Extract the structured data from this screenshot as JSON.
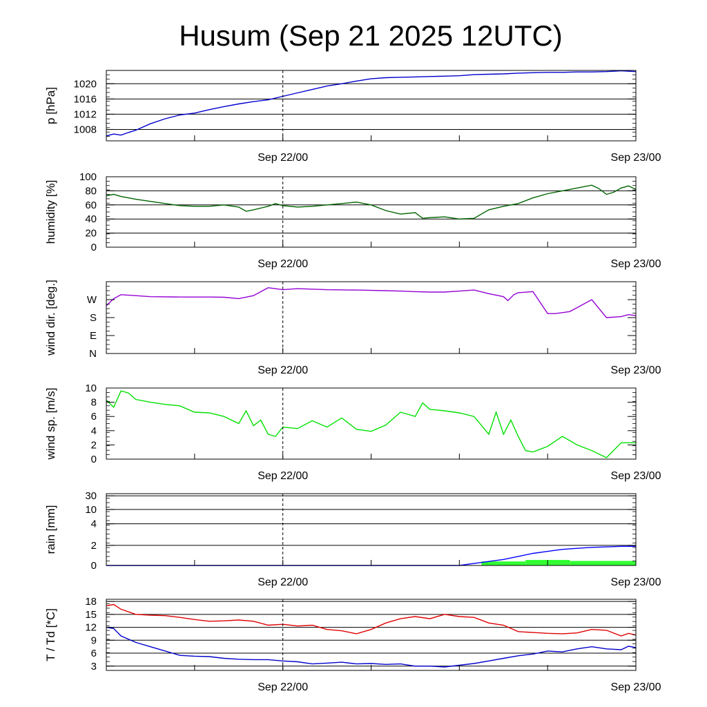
{
  "title": "Husum (Sep 21 2025 12UTC)",
  "x_labels": [
    "Sep 22/00",
    "Sep 23/00"
  ],
  "colors": {
    "pressure": "#0000cc",
    "humidity": "#006400",
    "wind_dir": "#9400d3",
    "wind_speed": "#00e000",
    "rain_total": "#0000ff",
    "rain_bars": "#33ff33",
    "temperature": "#e00000",
    "dewpoint": "#0000cc",
    "grid": "#000000"
  },
  "chart_data": [
    {
      "type": "line",
      "name": "pressure",
      "ylabel": "p [hPa]",
      "ylim": [
        1005,
        1023.5
      ],
      "yticks": [
        1008,
        1012,
        1016,
        1020
      ],
      "ytick_labels": [
        "1008",
        "1012",
        "1016",
        "1020"
      ],
      "grid": true,
      "x": [
        0,
        0.5,
        1,
        1.5,
        2,
        3,
        4,
        5,
        6,
        7,
        8,
        9,
        10,
        11,
        12,
        13,
        14,
        15,
        16,
        17,
        18,
        19,
        20,
        21,
        22,
        23,
        24,
        25,
        26,
        27,
        28,
        29,
        30,
        31,
        32,
        33,
        34,
        35,
        36
      ],
      "series": [
        {
          "values": [
            1006.3,
            1006.8,
            1006.5,
            1007.2,
            1007.8,
            1009.5,
            1010.8,
            1011.8,
            1012.3,
            1013.2,
            1014.0,
            1014.7,
            1015.3,
            1015.8,
            1016.7,
            1017.6,
            1018.5,
            1019.4,
            1020.0,
            1020.7,
            1021.3,
            1021.6,
            1021.7,
            1021.8,
            1021.9,
            1022.0,
            1022.1,
            1022.4,
            1022.5,
            1022.6,
            1022.8,
            1022.9,
            1023.0,
            1023.0,
            1023.1,
            1023.1,
            1023.2,
            1023.4,
            1023.2
          ]
        }
      ]
    },
    {
      "type": "line",
      "name": "humidity",
      "ylabel": "humidity [%]",
      "ylim": [
        0,
        100
      ],
      "yticks": [
        0,
        20,
        40,
        60,
        80,
        100
      ],
      "ytick_labels": [
        "0",
        "20",
        "40",
        "60",
        "80",
        "100"
      ],
      "grid": true,
      "x": [
        0,
        0.5,
        1,
        2,
        3,
        4,
        5,
        6,
        7,
        8,
        9,
        9.5,
        10,
        11,
        11.5,
        12,
        13,
        14,
        15,
        16,
        17,
        18,
        19,
        20,
        21,
        21.5,
        22,
        23,
        24,
        25,
        26,
        27,
        28,
        29,
        30,
        31,
        32,
        33,
        33.5,
        34,
        34.5,
        35,
        35.5,
        36
      ],
      "series": [
        {
          "values": [
            73,
            75,
            72,
            68,
            65,
            62,
            59,
            58,
            58,
            60,
            57,
            51,
            53,
            58,
            62,
            59,
            57,
            58,
            60,
            62,
            64,
            60,
            52,
            47,
            49,
            41,
            42,
            43,
            40,
            41,
            53,
            58,
            62,
            70,
            76,
            80,
            84,
            88,
            83,
            75,
            78,
            84,
            87,
            82
          ]
        }
      ]
    },
    {
      "type": "line",
      "name": "wind_dir",
      "ylabel": "wind dir. [deg.]",
      "ylim": [
        0,
        360
      ],
      "yticks": [
        0,
        90,
        180,
        270
      ],
      "ytick_labels": [
        "N",
        "E",
        "S",
        "W"
      ],
      "grid": false,
      "x": [
        0,
        0.5,
        1,
        2,
        3,
        5,
        7,
        8,
        9,
        10,
        11,
        12,
        13,
        15,
        17,
        19,
        20,
        21,
        22,
        23,
        24,
        25,
        26,
        27,
        27.3,
        27.7,
        28,
        29,
        30,
        30.5,
        31,
        31.5,
        32,
        33,
        34,
        35,
        35.5,
        36
      ],
      "series": [
        {
          "values": [
            240,
            275,
            295,
            290,
            285,
            283,
            283,
            282,
            275,
            290,
            330,
            320,
            325,
            320,
            318,
            315,
            313,
            310,
            308,
            308,
            313,
            318,
            300,
            285,
            265,
            295,
            305,
            310,
            200,
            200,
            205,
            210,
            230,
            270,
            180,
            185,
            195,
            190
          ]
        }
      ]
    },
    {
      "type": "line",
      "name": "wind_speed",
      "ylabel": "wind sp. [m/s]",
      "ylim": [
        0,
        10
      ],
      "yticks": [
        0,
        2,
        4,
        6,
        8,
        10
      ],
      "ytick_labels": [
        "0",
        "2",
        "4",
        "6",
        "8",
        "10"
      ],
      "grid": false,
      "x": [
        0,
        0.5,
        1,
        1.5,
        2,
        3,
        4,
        5,
        6,
        7,
        8,
        9,
        9.5,
        10,
        10.5,
        11,
        11.5,
        12,
        13,
        14,
        15,
        16,
        17,
        18,
        19,
        20,
        21,
        21.5,
        22,
        23,
        24,
        25,
        26,
        26.5,
        27,
        27.5,
        28,
        28.5,
        29,
        30,
        31,
        32,
        33,
        34,
        35,
        36
      ],
      "series": [
        {
          "values": [
            8.3,
            7.3,
            9.6,
            9.3,
            8.4,
            8.0,
            7.7,
            7.5,
            6.6,
            6.5,
            6.0,
            5.0,
            6.8,
            4.7,
            5.5,
            3.5,
            3.2,
            4.5,
            4.3,
            5.4,
            4.5,
            5.8,
            4.2,
            3.9,
            4.8,
            6.6,
            6.0,
            7.9,
            7.0,
            6.8,
            6.5,
            6.0,
            3.5,
            6.6,
            3.5,
            5.5,
            3.2,
            1.2,
            1.0,
            1.8,
            3.2,
            2.0,
            1.2,
            0.2,
            2.3,
            2.3
          ]
        }
      ]
    },
    {
      "type": "line",
      "name": "rain",
      "ylabel": "rain [mm]",
      "ylim": [
        0,
        30
      ],
      "yticks": [
        0,
        2,
        4,
        10,
        30
      ],
      "ytick_labels": [
        "0",
        "2",
        "4",
        "10",
        "30"
      ],
      "grid": true,
      "x": [
        0,
        24,
        25,
        26,
        27,
        28,
        29,
        30,
        31,
        32,
        33,
        34,
        35,
        36
      ],
      "series": [
        {
          "name": "accumulated",
          "values": [
            0,
            0,
            0.2,
            0.4,
            0.6,
            0.9,
            1.2,
            1.4,
            1.6,
            1.7,
            1.8,
            1.85,
            1.9,
            1.9
          ]
        }
      ],
      "bars": {
        "x_start": [
          25.5,
          28.5,
          31.5
        ],
        "x_end": [
          28.5,
          31.5,
          36
        ],
        "values": [
          0.4,
          0.55,
          0.45
        ]
      }
    },
    {
      "type": "line",
      "name": "temperature",
      "ylabel": "T / Td [*C]",
      "ylim": [
        2,
        18.5
      ],
      "yticks": [
        3,
        6,
        9,
        12,
        15,
        18
      ],
      "ytick_labels": [
        "3",
        "6",
        "9",
        "12",
        "15",
        "18"
      ],
      "grid": true,
      "x": [
        0,
        0.5,
        1,
        2,
        3,
        4,
        5,
        6,
        7,
        8,
        9,
        10,
        11,
        12,
        13,
        14,
        15,
        16,
        17,
        18,
        19,
        20,
        21,
        22,
        23,
        24,
        25,
        26,
        27,
        28,
        29,
        30,
        31,
        32,
        33,
        34,
        35,
        35.5,
        36
      ],
      "series": [
        {
          "name": "T",
          "values": [
            17.0,
            17.3,
            16.2,
            15.0,
            14.8,
            14.7,
            14.3,
            13.8,
            13.4,
            13.5,
            13.7,
            13.4,
            12.5,
            12.7,
            12.3,
            12.5,
            11.5,
            11.2,
            10.5,
            11.5,
            13.0,
            14.0,
            14.5,
            14.0,
            15.0,
            14.5,
            14.3,
            13.0,
            12.5,
            11.0,
            10.8,
            10.6,
            10.5,
            10.7,
            11.5,
            11.3,
            10.0,
            10.6,
            10.2
          ]
        },
        {
          "name": "Td",
          "values": [
            12.0,
            11.7,
            10.0,
            8.5,
            7.5,
            6.5,
            5.5,
            5.3,
            5.2,
            4.8,
            4.6,
            4.5,
            4.5,
            4.2,
            4.0,
            3.5,
            3.7,
            3.9,
            3.5,
            3.6,
            3.4,
            3.5,
            3.0,
            3.0,
            2.8,
            3.2,
            3.6,
            4.2,
            4.8,
            5.4,
            5.8,
            6.5,
            6.3,
            7.0,
            7.5,
            7.0,
            6.8,
            7.6,
            7.3
          ]
        }
      ]
    }
  ]
}
